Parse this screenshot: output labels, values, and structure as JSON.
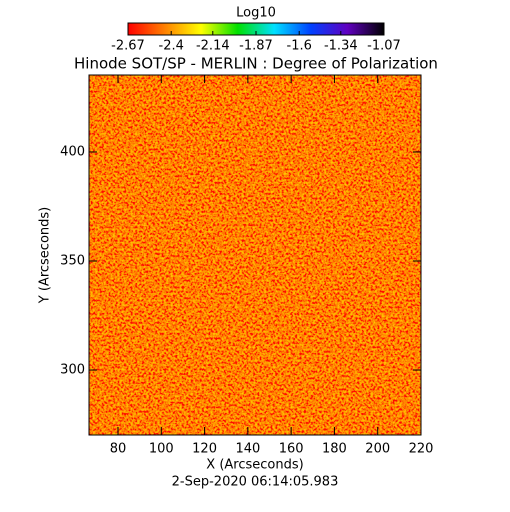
{
  "chart_data": {
    "type": "heatmap",
    "title": "Hinode SOT/SP - MERLIN : Degree of Polarization",
    "subtitle": "2-Sep-2020 06:14:05.983",
    "x_label": "X (Arcseconds)",
    "y_label": "Y (Arcseconds)",
    "xlim": [
      66.6,
      220
    ],
    "xticks": [
      80,
      100,
      120,
      140,
      160,
      180,
      200,
      220
    ],
    "ylim": [
      270.2,
      435.3
    ],
    "yticks": [
      300,
      350,
      400
    ],
    "colorbar_label": "Log10",
    "clim": [
      -2.67,
      -1.07
    ],
    "cticks": [
      -2.67,
      -2.4,
      -2.14,
      -1.87,
      -1.6,
      -1.34,
      -1.07
    ],
    "colorscale": [
      "#ff0000",
      "#ff8000",
      "#ffff00",
      "#00e000",
      "#00e0ff",
      "#0040ff",
      "#6000c0",
      "#000000"
    ]
  }
}
